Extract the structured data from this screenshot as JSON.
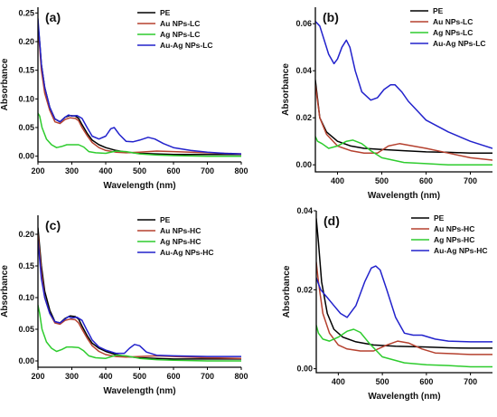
{
  "figure": {
    "chart_data": [
      {
        "panel": "(a)",
        "type": "line",
        "xlabel": "Wavelength (nm)",
        "ylabel": "Absorbance",
        "xlim": [
          200,
          800
        ],
        "ylim": [
          -0.01,
          0.26
        ],
        "xticks": [
          200,
          300,
          400,
          500,
          600,
          700,
          800
        ],
        "yticks": [
          0.0,
          0.05,
          0.1,
          0.15,
          0.2,
          0.25
        ],
        "ytick_labels": [
          "0.00",
          "0.05",
          "0.10",
          "0.15",
          "0.20",
          "0.25"
        ],
        "legend_position": "top-right",
        "series": [
          {
            "name": "PE",
            "color": "#000000",
            "x": [
              200,
              205,
              210,
              220,
              235,
              250,
              265,
              280,
              295,
              310,
              320,
              330,
              345,
              360,
              380,
              400,
              430,
              460,
              500,
              550,
              600,
              700,
              800
            ],
            "y": [
              0.23,
              0.2,
              0.16,
              0.12,
              0.085,
              0.065,
              0.06,
              0.068,
              0.071,
              0.07,
              0.066,
              0.055,
              0.04,
              0.028,
              0.02,
              0.015,
              0.01,
              0.007,
              0.005,
              0.004,
              0.003,
              0.003,
              0.003
            ]
          },
          {
            "name": "Au NPs-LC",
            "color": "#b5412f",
            "x": [
              200,
              205,
              210,
              220,
              235,
              250,
              265,
              280,
              295,
              310,
              320,
              330,
              345,
              360,
              380,
              400,
              430,
              460,
              500,
              550,
              600,
              700,
              800
            ],
            "y": [
              0.22,
              0.19,
              0.15,
              0.11,
              0.08,
              0.06,
              0.057,
              0.064,
              0.067,
              0.066,
              0.062,
              0.05,
              0.036,
              0.024,
              0.015,
              0.01,
              0.007,
              0.006,
              0.007,
              0.009,
              0.008,
              0.006,
              0.004
            ]
          },
          {
            "name": "Ag NPs-LC",
            "color": "#2ecc2e",
            "x": [
              200,
              205,
              212,
              225,
              240,
              255,
              270,
              285,
              300,
              320,
              335,
              350,
              370,
              400,
              430,
              460,
              500,
              550,
              600,
              700,
              800
            ],
            "y": [
              0.075,
              0.07,
              0.05,
              0.03,
              0.02,
              0.015,
              0.017,
              0.02,
              0.02,
              0.02,
              0.016,
              0.008,
              0.006,
              0.005,
              0.009,
              0.008,
              0.004,
              0.002,
              0.001,
              0.0,
              0.0
            ]
          },
          {
            "name": "Au-Ag NPs-LC",
            "color": "#2222cc",
            "x": [
              200,
              205,
              210,
              220,
              235,
              250,
              265,
              280,
              290,
              300,
              315,
              330,
              345,
              360,
              380,
              400,
              415,
              425,
              440,
              460,
              480,
              500,
              525,
              545,
              570,
              600,
              650,
              700,
              750,
              800
            ],
            "y": [
              0.24,
              0.2,
              0.16,
              0.12,
              0.085,
              0.065,
              0.06,
              0.068,
              0.072,
              0.07,
              0.071,
              0.066,
              0.05,
              0.035,
              0.03,
              0.035,
              0.048,
              0.05,
              0.038,
              0.026,
              0.025,
              0.028,
              0.033,
              0.03,
              0.022,
              0.015,
              0.01,
              0.007,
              0.005,
              0.004
            ]
          }
        ]
      },
      {
        "panel": "(b)",
        "type": "line",
        "xlabel": "Wavelength (nm)",
        "ylabel": "Absorbance",
        "xlim": [
          350,
          750
        ],
        "ylim": [
          -0.003,
          0.067
        ],
        "xticks": [
          400,
          500,
          600,
          700
        ],
        "yticks": [
          0.0,
          0.02,
          0.04,
          0.06
        ],
        "ytick_labels": [
          "0.00",
          "0.02",
          "0.04",
          "0.06"
        ],
        "legend_position": "top-right",
        "series": [
          {
            "name": "PE",
            "color": "#000000",
            "x": [
              350,
              360,
              375,
              400,
              430,
              460,
              500,
              550,
              600,
              650,
              700,
              750
            ],
            "y": [
              0.036,
              0.02,
              0.014,
              0.01,
              0.008,
              0.007,
              0.0065,
              0.006,
              0.0055,
              0.0053,
              0.005,
              0.005
            ]
          },
          {
            "name": "Au NPs-LC",
            "color": "#b5412f",
            "x": [
              350,
              360,
              375,
              400,
              430,
              460,
              490,
              515,
              540,
              570,
              600,
              650,
              700,
              750
            ],
            "y": [
              0.034,
              0.02,
              0.013,
              0.008,
              0.006,
              0.005,
              0.005,
              0.008,
              0.009,
              0.008,
              0.007,
              0.005,
              0.003,
              0.002
            ]
          },
          {
            "name": "Ag NPs-LC",
            "color": "#2ecc2e",
            "x": [
              350,
              355,
              365,
              380,
              400,
              420,
              435,
              455,
              475,
              500,
              550,
              600,
              650,
              700,
              750
            ],
            "y": [
              0.012,
              0.01,
              0.009,
              0.007,
              0.008,
              0.01,
              0.0105,
              0.009,
              0.006,
              0.003,
              0.001,
              0.0005,
              0.0,
              0.0,
              0.0
            ]
          },
          {
            "name": "Au-Ag NPs-LC",
            "color": "#2222cc",
            "x": [
              350,
              360,
              370,
              380,
              392,
              400,
              410,
              420,
              428,
              440,
              455,
              475,
              490,
              505,
              520,
              530,
              545,
              560,
              580,
              600,
              650,
              700,
              750
            ],
            "y": [
              0.061,
              0.059,
              0.053,
              0.047,
              0.043,
              0.045,
              0.05,
              0.053,
              0.05,
              0.04,
              0.031,
              0.0275,
              0.0285,
              0.032,
              0.034,
              0.034,
              0.031,
              0.027,
              0.023,
              0.019,
              0.014,
              0.01,
              0.007
            ]
          }
        ]
      },
      {
        "panel": "(c)",
        "type": "line",
        "xlabel": "Wavelength (nm)",
        "ylabel": "Absorbance",
        "xlim": [
          200,
          800
        ],
        "ylim": [
          -0.01,
          0.23
        ],
        "xticks": [
          200,
          300,
          400,
          500,
          600,
          700,
          800
        ],
        "yticks": [
          0.0,
          0.05,
          0.1,
          0.15,
          0.2
        ],
        "ytick_labels": [
          "0.00",
          "0.05",
          "0.10",
          "0.15",
          "0.20"
        ],
        "legend_position": "top-right",
        "series": [
          {
            "name": "PE",
            "color": "#000000",
            "x": [
              200,
              205,
              210,
              220,
              235,
              250,
              265,
              280,
              295,
              310,
              320,
              330,
              345,
              360,
              380,
              400,
              430,
              460,
              500,
              550,
              600,
              700,
              800
            ],
            "y": [
              0.21,
              0.18,
              0.15,
              0.11,
              0.08,
              0.062,
              0.06,
              0.067,
              0.071,
              0.07,
              0.066,
              0.055,
              0.04,
              0.028,
              0.02,
              0.015,
              0.01,
              0.007,
              0.005,
              0.004,
              0.003,
              0.003,
              0.003
            ]
          },
          {
            "name": "Au NPs-HC",
            "color": "#b5412f",
            "x": [
              200,
              205,
              210,
              220,
              235,
              250,
              265,
              280,
              295,
              310,
              320,
              330,
              345,
              360,
              380,
              400,
              430,
              460,
              500,
              550,
              600,
              700,
              800
            ],
            "y": [
              0.2,
              0.17,
              0.14,
              0.1,
              0.075,
              0.06,
              0.058,
              0.064,
              0.066,
              0.065,
              0.06,
              0.05,
              0.036,
              0.024,
              0.015,
              0.01,
              0.007,
              0.006,
              0.007,
              0.008,
              0.007,
              0.005,
              0.004
            ]
          },
          {
            "name": "Ag NPs-HC",
            "color": "#2ecc2e",
            "x": [
              200,
              205,
              212,
              225,
              240,
              255,
              270,
              285,
              300,
              320,
              335,
              350,
              370,
              400,
              430,
              460,
              500,
              550,
              600,
              700,
              800
            ],
            "y": [
              0.088,
              0.075,
              0.05,
              0.03,
              0.02,
              0.015,
              0.018,
              0.022,
              0.022,
              0.021,
              0.016,
              0.008,
              0.005,
              0.004,
              0.009,
              0.008,
              0.004,
              0.002,
              0.001,
              0.0,
              0.0
            ]
          },
          {
            "name": "Au-Ag NPs-HC",
            "color": "#2222cc",
            "x": [
              200,
              205,
              210,
              220,
              235,
              250,
              265,
              280,
              290,
              300,
              315,
              330,
              345,
              360,
              380,
              400,
              430,
              455,
              470,
              485,
              500,
              520,
              550,
              600,
              700,
              800
            ],
            "y": [
              0.19,
              0.16,
              0.13,
              0.1,
              0.075,
              0.062,
              0.06,
              0.066,
              0.07,
              0.068,
              0.069,
              0.064,
              0.048,
              0.033,
              0.022,
              0.017,
              0.012,
              0.012,
              0.02,
              0.026,
              0.024,
              0.014,
              0.009,
              0.008,
              0.007,
              0.007
            ]
          }
        ]
      },
      {
        "panel": "(d)",
        "type": "line",
        "xlabel": "Wavelength (nm)",
        "ylabel": "Absorbance",
        "xlim": [
          350,
          750
        ],
        "ylim": [
          -0.001,
          0.04
        ],
        "xticks": [
          400,
          500,
          600,
          700
        ],
        "yticks": [
          0.0,
          0.02,
          0.04
        ],
        "ytick_labels": [
          "0.00",
          "0.02",
          "0.04"
        ],
        "legend_position": "top-right",
        "series": [
          {
            "name": "PE",
            "color": "#000000",
            "x": [
              350,
              355,
              362,
              375,
              390,
              410,
              440,
              480,
              530,
              600,
              650,
              700,
              750
            ],
            "y": [
              0.038,
              0.032,
              0.022,
              0.014,
              0.01,
              0.008,
              0.0068,
              0.006,
              0.0057,
              0.0055,
              0.0053,
              0.0052,
              0.0052
            ]
          },
          {
            "name": "Au NPs-HC",
            "color": "#b5412f",
            "x": [
              350,
              355,
              365,
              380,
              400,
              420,
              450,
              480,
              510,
              535,
              560,
              590,
              620,
              660,
              700,
              750
            ],
            "y": [
              0.027,
              0.022,
              0.014,
              0.009,
              0.006,
              0.005,
              0.0045,
              0.0045,
              0.006,
              0.007,
              0.0065,
              0.005,
              0.004,
              0.0038,
              0.0036,
              0.0036
            ]
          },
          {
            "name": "Ag NPs-HC",
            "color": "#2ecc2e",
            "x": [
              350,
              355,
              365,
              380,
              400,
              420,
              435,
              450,
              470,
              500,
              550,
              600,
              650,
              700,
              750
            ],
            "y": [
              0.011,
              0.009,
              0.0075,
              0.007,
              0.008,
              0.0095,
              0.01,
              0.0092,
              0.0065,
              0.003,
              0.0015,
              0.001,
              0.0008,
              0.0005,
              0.0005
            ]
          },
          {
            "name": "Au-Ag NPs-HC",
            "color": "#2222cc",
            "x": [
              350,
              360,
              375,
              390,
              405,
              420,
              440,
              460,
              475,
              485,
              495,
              510,
              530,
              550,
              570,
              590,
              620,
              650,
              700,
              750
            ],
            "y": [
              0.023,
              0.02,
              0.018,
              0.016,
              0.014,
              0.013,
              0.016,
              0.022,
              0.0255,
              0.026,
              0.025,
              0.02,
              0.013,
              0.009,
              0.0085,
              0.0085,
              0.0075,
              0.007,
              0.0068,
              0.0068
            ]
          }
        ]
      }
    ]
  }
}
